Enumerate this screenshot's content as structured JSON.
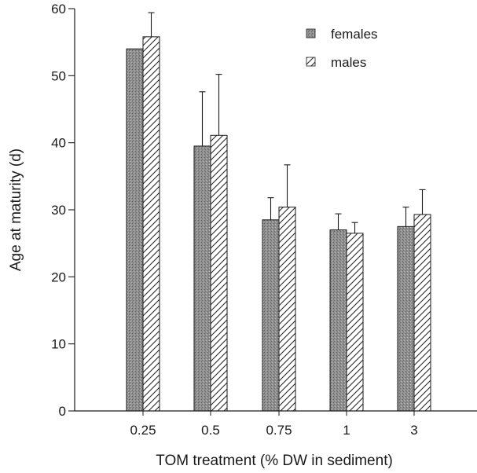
{
  "chart_data": {
    "type": "bar",
    "title": "",
    "xlabel": "TOM treatment (% DW in sediment)",
    "ylabel": "Age at maturity (d)",
    "categories": [
      "0.25",
      "0.5",
      "0.75",
      "1",
      "3"
    ],
    "ylim": [
      0,
      60
    ],
    "yticks": [
      "0",
      "10",
      "20",
      "30",
      "40",
      "50",
      "60"
    ],
    "grid": false,
    "legend_position": "top-right",
    "series": [
      {
        "name": "females",
        "fill": "stippled-dark",
        "values": [
          54.0,
          39.5,
          28.5,
          27.0,
          27.5
        ],
        "error_upper": [
          54.0,
          47.6,
          31.8,
          29.4,
          30.4
        ]
      },
      {
        "name": "males",
        "fill": "hatched",
        "values": [
          55.8,
          41.1,
          30.4,
          26.5,
          29.3
        ],
        "error_upper": [
          59.4,
          50.2,
          36.7,
          28.1,
          33.0
        ]
      }
    ]
  }
}
